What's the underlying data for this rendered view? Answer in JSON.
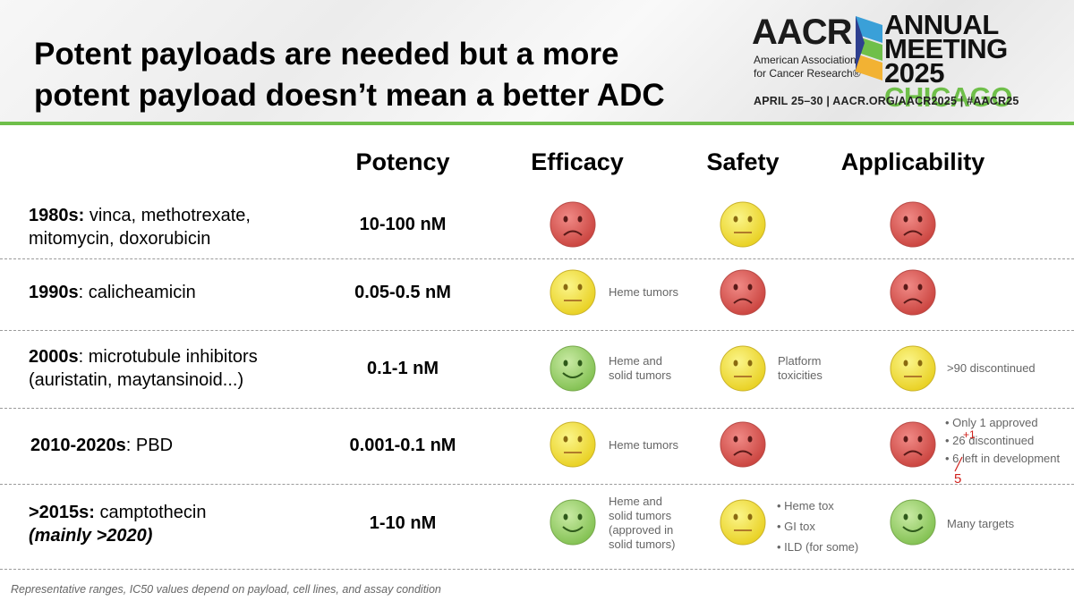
{
  "title": {
    "line1": "Potent payloads are needed but a more",
    "line2": "potent payload doesn’t mean a better ADC"
  },
  "logo": {
    "aacr": "AACR",
    "org_line1": "American Association",
    "org_line2": "for Cancer Research®",
    "annual": "ANNUAL",
    "meeting": "MEETING",
    "year": "2025",
    "city": "CHICAGO",
    "dates": "APRIL 25–30 | AACR.ORG/AACR2025 | #AACR25"
  },
  "columns": {
    "potency": "Potency",
    "efficacy": "Efficacy",
    "safety": "Safety",
    "applicability": "Applicability"
  },
  "face_colors": {
    "red": "#d9534f",
    "yellow": "#f4e542",
    "green": "#9bd16a"
  },
  "rows": [
    {
      "label_bold": "1980s:",
      "label_rest": " vinca, methotrexate,",
      "label_line2": "mitomycin, doxorubicin",
      "potency": "10-100 nM",
      "efficacy": {
        "face": "sad-red"
      },
      "safety": {
        "face": "neutral-yellow"
      },
      "applicability": {
        "face": "sad-red"
      }
    },
    {
      "label_bold": "1990s",
      "label_rest": ": calicheamicin",
      "potency": "0.05-0.5 nM",
      "efficacy": {
        "face": "neutral-yellow",
        "note": "Heme tumors"
      },
      "safety": {
        "face": "sad-red"
      },
      "applicability": {
        "face": "sad-red"
      }
    },
    {
      "label_bold": "2000s",
      "label_rest": ": microtubule inhibitors",
      "label_line2": "(auristatin, maytansinoid...)",
      "potency": "0.1-1 nM",
      "efficacy": {
        "face": "happy-green",
        "note_line1": "Heme and",
        "note_line2": "solid tumors"
      },
      "safety": {
        "face": "neutral-yellow",
        "note_line1": "Platform",
        "note_line2": "toxicities"
      },
      "applicability": {
        "face": "neutral-yellow",
        "note": ">90 discontinued"
      }
    },
    {
      "label_bold": "2010-2020s",
      "label_rest": ": PBD",
      "potency": "0.001-0.1 nM",
      "efficacy": {
        "face": "neutral-yellow",
        "note": "Heme tumors"
      },
      "safety": {
        "face": "sad-red"
      },
      "applicability": {
        "face": "sad-red",
        "bullets": [
          "• Only 1 approved",
          "• 26 discontinued",
          "• 6 left in development"
        ],
        "annotation_plus": "+1",
        "annotation_five": "5"
      }
    },
    {
      "label_bold": ">2015s:",
      "label_rest": " camptothecin",
      "label_line2": "(mainly >2020)",
      "potency": "1-10 nM",
      "efficacy": {
        "face": "happy-green",
        "note_lines": [
          "Heme and",
          "solid tumors",
          "(approved in",
          "solid tumors)"
        ]
      },
      "safety": {
        "face": "neutral-yellow",
        "bullets": [
          "• Heme tox",
          "• GI tox",
          "• ILD (for some)"
        ]
      },
      "applicability": {
        "face": "happy-green",
        "note": "Many targets"
      }
    }
  ],
  "footer": "Representative ranges, IC50 values depend on payload, cell lines, and assay condition"
}
